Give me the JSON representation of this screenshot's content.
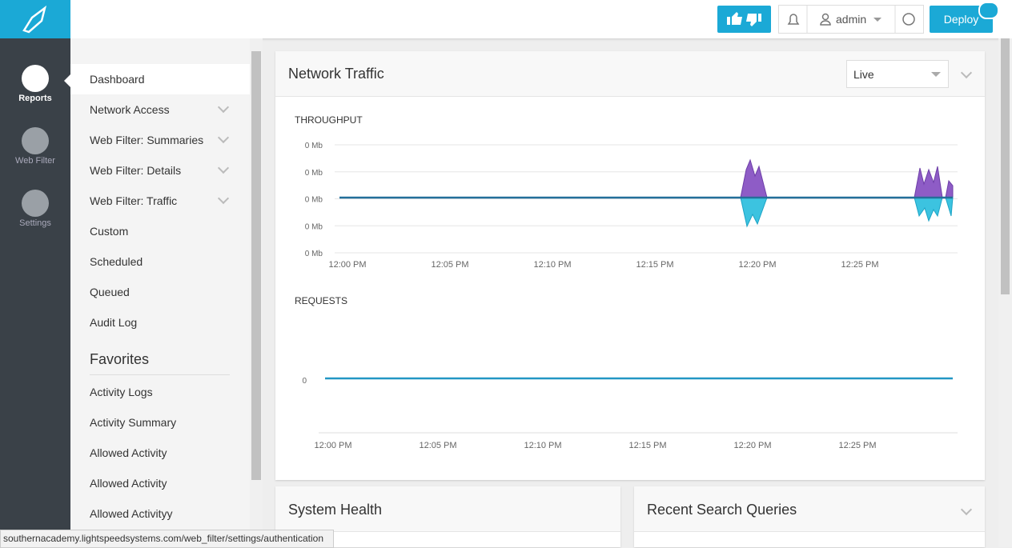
{
  "header": {
    "user": "admin",
    "deploy": "Deploy"
  },
  "sidebar": [
    {
      "label": "Reports"
    },
    {
      "label": "Web Filter"
    },
    {
      "label": "Settings"
    }
  ],
  "menu": {
    "items": [
      "Dashboard",
      "Network Access",
      "Web Filter: Summaries",
      "Web Filter: Details",
      "Web Filter: Traffic",
      "Custom",
      "Scheduled",
      "Queued",
      "Audit Log"
    ],
    "favorites_title": "Favorites",
    "favorites": [
      "Activity Logs",
      "Activity Summary",
      "Allowed Activity",
      "Allowed Activity",
      "Allowed Activityy"
    ]
  },
  "card": {
    "title": "Network Traffic",
    "select": "Live",
    "throughput": {
      "label": "THROUGHPUT",
      "yticks": [
        "0 Mb",
        "0 Mb",
        "0 Mb",
        "0 Mb",
        "0 Mb"
      ],
      "xticks": [
        "12:00 PM",
        "12:05 PM",
        "12:10 PM",
        "12:15 PM",
        "12:20 PM",
        "12:25 PM"
      ]
    },
    "requests": {
      "label": "REQUESTS",
      "yticks": [
        "0"
      ],
      "xticks": [
        "12:00 PM",
        "12:05 PM",
        "12:10 PM",
        "12:15 PM",
        "12:20 PM",
        "12:25 PM"
      ]
    }
  },
  "panels": [
    {
      "title": "System Health"
    },
    {
      "title": "Recent Search Queries"
    }
  ],
  "status_url": "southernacademy.lightspeedsystems.com/web_filter/settings/authentication"
}
